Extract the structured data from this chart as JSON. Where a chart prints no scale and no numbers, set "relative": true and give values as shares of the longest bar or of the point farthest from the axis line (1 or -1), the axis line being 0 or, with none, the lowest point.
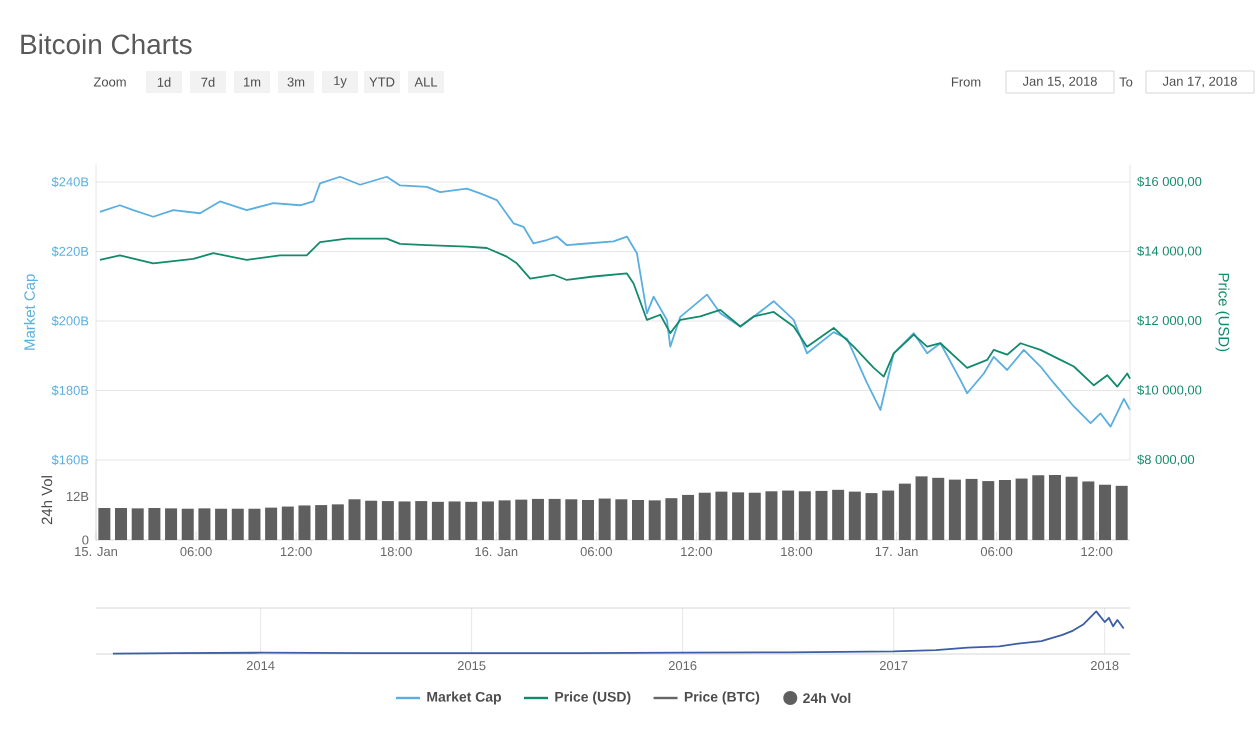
{
  "chart_data": [
    {
      "type": "line",
      "title": "Bitcoin Charts",
      "ylabel": "Market Cap",
      "y2label": "Price (USD)",
      "annotations": [
        "Zoom",
        "1d",
        "7d",
        "1m",
        "3m",
        "1y",
        "YTD",
        "ALL",
        "From",
        "Jan 15, 2018",
        "To",
        "Jan 17, 2018"
      ],
      "xlim": [
        "2018-01-15T00:00",
        "2018-01-17T14:00"
      ],
      "ylim": [
        160,
        245
      ],
      "yticks": [
        {
          "value": 160,
          "label": "$160B"
        },
        {
          "value": 180,
          "label": "$180B"
        },
        {
          "value": 200,
          "label": "$200B"
        },
        {
          "value": 220,
          "label": "$220B"
        },
        {
          "value": 240,
          "label": "$240B"
        }
      ],
      "y2lim": [
        8000,
        16500
      ],
      "y2ticks": [
        {
          "value": 8000,
          "label": "$8 000,00"
        },
        {
          "value": 10000,
          "label": "$10 000,00"
        },
        {
          "value": 12000,
          "label": "$12 000,00"
        },
        {
          "value": 14000,
          "label": "$14 000,00"
        },
        {
          "value": 16000,
          "label": "$16 000,00"
        }
      ],
      "grid": "y",
      "legend": "bottom",
      "tick_labels": "y",
      "series": [
        {
          "name": "Market Cap",
          "color": "#5aaee0",
          "x": [
            "2018-01-15T00:14",
            "2018-01-15T01:26",
            "2018-01-15T02:14",
            "2018-01-15T03:26",
            "2018-01-15T04:38",
            "2018-01-15T06:14",
            "2018-01-15T07:26",
            "2018-01-15T09:02",
            "2018-01-15T10:38",
            "2018-01-15T12:14",
            "2018-01-15T13:02",
            "2018-01-15T13:26",
            "2018-01-15T14:38",
            "2018-01-15T15:50",
            "2018-01-15T17:26",
            "2018-01-15T18:14",
            "2018-01-15T19:50",
            "2018-01-15T20:38",
            "2018-01-15T22:14",
            "2018-01-15T23:02",
            "2018-01-16T00:02",
            "2018-01-16T01:02",
            "2018-01-16T01:38",
            "2018-01-16T02:14",
            "2018-01-16T03:02",
            "2018-01-16T03:38",
            "2018-01-16T04:14",
            "2018-01-16T05:26",
            "2018-01-16T07:02",
            "2018-01-16T07:50",
            "2018-01-16T08:26",
            "2018-01-16T09:02",
            "2018-01-16T09:26",
            "2018-01-16T10:14",
            "2018-01-16T10:26",
            "2018-01-16T11:02",
            "2018-01-16T12:38",
            "2018-01-16T13:26",
            "2018-01-16T14:38",
            "2018-01-16T15:26",
            "2018-01-16T16:38",
            "2018-01-16T17:50",
            "2018-01-16T18:38",
            "2018-01-16T20:14",
            "2018-01-16T21:02",
            "2018-01-16T22:14",
            "2018-01-16T23:02",
            "2018-01-16T23:50",
            "2018-01-17T01:02",
            "2018-01-17T01:50",
            "2018-01-17T02:38",
            "2018-01-17T03:50",
            "2018-01-17T04:14",
            "2018-01-17T05:14",
            "2018-01-17T05:50",
            "2018-01-17T06:38",
            "2018-01-17T07:38",
            "2018-01-17T08:38",
            "2018-01-17T09:26",
            "2018-01-17T10:38",
            "2018-01-17T11:38",
            "2018-01-17T12:14",
            "2018-01-17T12:50",
            "2018-01-17T13:38",
            "2018-01-17T14:00"
          ],
          "values": [
            231.4,
            233.3,
            231.9,
            230.0,
            231.9,
            231.0,
            234.4,
            231.9,
            233.9,
            233.3,
            234.4,
            239.6,
            241.5,
            239.2,
            241.5,
            239.0,
            238.6,
            237.1,
            238.1,
            236.7,
            234.8,
            228.1,
            227.1,
            222.3,
            223.3,
            224.3,
            221.8,
            222.3,
            222.9,
            224.3,
            219.5,
            202.2,
            207.0,
            200.3,
            192.6,
            201.2,
            207.6,
            202.2,
            198.4,
            201.2,
            205.7,
            200.3,
            190.7,
            196.8,
            194.9,
            182.1,
            174.4,
            190.7,
            196.5,
            190.7,
            193.6,
            183.0,
            179.2,
            184.9,
            189.7,
            185.9,
            191.7,
            186.9,
            182.1,
            175.4,
            170.6,
            173.4,
            169.6,
            177.6,
            174.4
          ]
        },
        {
          "name": "Price (USD)",
          "color": "#138a6b",
          "axis": "y2",
          "x": [
            "2018-01-15T00:14",
            "2018-01-15T01:26",
            "2018-01-15T03:26",
            "2018-01-15T05:50",
            "2018-01-15T07:02",
            "2018-01-15T09:02",
            "2018-01-15T11:02",
            "2018-01-15T12:38",
            "2018-01-15T13:26",
            "2018-01-15T15:02",
            "2018-01-15T17:26",
            "2018-01-15T18:14",
            "2018-01-15T19:50",
            "2018-01-15T22:14",
            "2018-01-15T23:26",
            "2018-01-16T00:38",
            "2018-01-16T01:14",
            "2018-01-16T02:02",
            "2018-01-16T03:26",
            "2018-01-16T04:14",
            "2018-01-16T05:50",
            "2018-01-16T07:50",
            "2018-01-16T08:14",
            "2018-01-16T09:02",
            "2018-01-16T09:50",
            "2018-01-16T10:26",
            "2018-01-16T11:02",
            "2018-01-16T12:14",
            "2018-01-16T13:26",
            "2018-01-16T14:38",
            "2018-01-16T15:26",
            "2018-01-16T16:38",
            "2018-01-16T17:50",
            "2018-01-16T18:38",
            "2018-01-16T20:14",
            "2018-01-16T21:26",
            "2018-01-16T22:38",
            "2018-01-16T23:14",
            "2018-01-16T23:50",
            "2018-01-17T01:02",
            "2018-01-17T01:50",
            "2018-01-17T02:38",
            "2018-01-17T04:14",
            "2018-01-17T05:26",
            "2018-01-17T05:50",
            "2018-01-17T06:38",
            "2018-01-17T07:26",
            "2018-01-17T08:38",
            "2018-01-17T09:50",
            "2018-01-17T10:38",
            "2018-01-17T11:50",
            "2018-01-17T12:38",
            "2018-01-17T13:14",
            "2018-01-17T13:50",
            "2018-01-17T14:00"
          ],
          "values": [
            13760,
            13890,
            13660,
            13790,
            13950,
            13760,
            13890,
            13890,
            14270,
            14370,
            14370,
            14220,
            14180,
            14140,
            14100,
            13850,
            13660,
            13220,
            13330,
            13180,
            13280,
            13370,
            13080,
            12030,
            12180,
            11650,
            12030,
            12130,
            12320,
            11840,
            12130,
            12260,
            11840,
            11260,
            11800,
            11260,
            10650,
            10400,
            11070,
            11610,
            11260,
            11360,
            10650,
            10880,
            11170,
            11030,
            11360,
            11170,
            10880,
            10690,
            10150,
            10440,
            10110,
            10490,
            10340
          ]
        },
        {
          "name": "Price (BTC)",
          "color": "#666666"
        }
      ]
    },
    {
      "type": "bar",
      "ylabel": "24h Vol",
      "xlim": [
        "2018-01-15T00:00",
        "2018-01-17T14:00"
      ],
      "ylim": [
        0,
        22
      ],
      "yticks": [
        0,
        {
          "value": 12,
          "label": "12B"
        }
      ],
      "xticks": [
        {
          "value": "2018-01-15T00:00",
          "label": "15. Jan"
        },
        {
          "value": "2018-01-15T06:00",
          "label": "06:00"
        },
        {
          "value": "2018-01-15T12:00",
          "label": "12:00"
        },
        {
          "value": "2018-01-15T18:00",
          "label": "18:00"
        },
        {
          "value": "2018-01-16T00:00",
          "label": "16. Jan"
        },
        {
          "value": "2018-01-16T06:00",
          "label": "06:00"
        },
        {
          "value": "2018-01-16T12:00",
          "label": "12:00"
        },
        {
          "value": "2018-01-16T18:00",
          "label": "18:00"
        },
        {
          "value": "2018-01-17T00:00",
          "label": "17. Jan"
        },
        {
          "value": "2018-01-17T06:00",
          "label": "06:00"
        },
        {
          "value": "2018-01-17T12:00",
          "label": "12:00"
        }
      ],
      "legend": "bottom",
      "series": [
        {
          "name": "24h Vol",
          "color": "#5f5f5f",
          "x": [
            "2018-01-15T00:30",
            "2018-01-15T01:30",
            "2018-01-15T02:30",
            "2018-01-15T03:30",
            "2018-01-15T04:30",
            "2018-01-15T05:30",
            "2018-01-15T06:30",
            "2018-01-15T07:30",
            "2018-01-15T08:30",
            "2018-01-15T09:30",
            "2018-01-15T10:30",
            "2018-01-15T11:30",
            "2018-01-15T12:30",
            "2018-01-15T13:30",
            "2018-01-15T14:30",
            "2018-01-15T15:30",
            "2018-01-15T16:30",
            "2018-01-15T17:30",
            "2018-01-15T18:30",
            "2018-01-15T19:30",
            "2018-01-15T20:30",
            "2018-01-15T21:30",
            "2018-01-15T22:30",
            "2018-01-15T23:30",
            "2018-01-16T00:30",
            "2018-01-16T01:30",
            "2018-01-16T02:30",
            "2018-01-16T03:30",
            "2018-01-16T04:30",
            "2018-01-16T05:30",
            "2018-01-16T06:30",
            "2018-01-16T07:30",
            "2018-01-16T08:30",
            "2018-01-16T09:30",
            "2018-01-16T10:30",
            "2018-01-16T11:30",
            "2018-01-16T12:30",
            "2018-01-16T13:30",
            "2018-01-16T14:30",
            "2018-01-16T15:30",
            "2018-01-16T16:30",
            "2018-01-16T17:30",
            "2018-01-16T18:30",
            "2018-01-16T19:30",
            "2018-01-16T20:30",
            "2018-01-16T21:30",
            "2018-01-16T22:30",
            "2018-01-16T23:30",
            "2018-01-17T00:30",
            "2018-01-17T01:30",
            "2018-01-17T02:30",
            "2018-01-17T03:30",
            "2018-01-17T04:30",
            "2018-01-17T05:30",
            "2018-01-17T06:30",
            "2018-01-17T07:30",
            "2018-01-17T08:30",
            "2018-01-17T09:30",
            "2018-01-17T10:30",
            "2018-01-17T11:30",
            "2018-01-17T12:30",
            "2018-01-17T13:30"
          ],
          "values": [
            8.8,
            8.8,
            8.7,
            8.8,
            8.7,
            8.6,
            8.7,
            8.6,
            8.6,
            8.6,
            8.9,
            9.2,
            9.5,
            9.6,
            9.8,
            11.2,
            10.8,
            10.7,
            10.6,
            10.7,
            10.5,
            10.6,
            10.5,
            10.6,
            10.9,
            11.1,
            11.3,
            11.3,
            11.2,
            11.0,
            11.4,
            11.2,
            11.0,
            10.9,
            11.5,
            12.4,
            13.0,
            13.3,
            13.1,
            13.0,
            13.4,
            13.6,
            13.4,
            13.5,
            13.8,
            13.3,
            12.9,
            13.6,
            15.5,
            17.5,
            17.1,
            16.6,
            16.8,
            16.2,
            16.5,
            16.9,
            17.8,
            17.9,
            17.4,
            16.1,
            15.2,
            14.9
          ]
        }
      ]
    },
    {
      "type": "line",
      "relative": true,
      "xlim": [
        2013.22,
        2018.12
      ],
      "xticks": [
        2014,
        2015,
        2016,
        2017,
        2018
      ],
      "grid": "x",
      "tick_labels": "x",
      "series": [
        {
          "color": "#3b5ea6",
          "x": [
            2013.3,
            2013.6,
            2014.0,
            2014.5,
            2015.0,
            2015.5,
            2016.0,
            2016.5,
            2017.0,
            2017.2,
            2017.35,
            2017.5,
            2017.6,
            2017.7,
            2017.8,
            2017.85,
            2017.9,
            2017.96,
            2018.0,
            2018.02,
            2018.04,
            2018.06,
            2018.09
          ],
          "values": [
            0.01,
            0.02,
            0.03,
            0.02,
            0.02,
            0.02,
            0.03,
            0.04,
            0.06,
            0.09,
            0.15,
            0.18,
            0.25,
            0.3,
            0.45,
            0.55,
            0.7,
            1.0,
            0.75,
            0.85,
            0.65,
            0.8,
            0.6
          ]
        }
      ]
    }
  ]
}
